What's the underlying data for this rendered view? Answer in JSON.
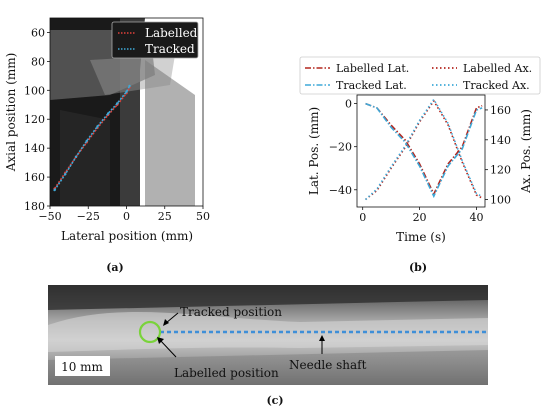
{
  "chart_data": [
    {
      "type": "scatter",
      "panel_label": "(a)",
      "xlabel": "Lateral position (mm)",
      "ylabel": "Axial position (mm)",
      "xlim": [
        -50,
        50
      ],
      "ylim": [
        180,
        50
      ],
      "xticks": [
        "−50",
        "−25",
        "0",
        "25",
        "50"
      ],
      "yticks": [
        "60",
        "80",
        "100",
        "120",
        "140",
        "160",
        "180"
      ],
      "legend": [
        "Labelled",
        "Tracked"
      ],
      "legend_placement": "top-right",
      "background": "ultrasound image",
      "series": [
        {
          "name": "Labelled",
          "color": "#e0413b",
          "x": [
            -47,
            -40,
            -33,
            -26,
            -19,
            -12,
            -6,
            0,
            2
          ],
          "y": [
            168,
            157,
            146,
            136,
            126,
            117,
            110,
            102,
            98
          ]
        },
        {
          "name": "Tracked",
          "color": "#3fa9d8",
          "x": [
            -47,
            -40,
            -33,
            -26,
            -19,
            -12,
            -6,
            0,
            2
          ],
          "y": [
            169,
            158,
            146,
            135,
            125,
            116,
            109,
            101,
            97
          ]
        }
      ]
    },
    {
      "type": "line",
      "panel_label": "(b)",
      "xlabel": "Time (s)",
      "ylabel_left": "Lat. Pos. (mm)",
      "ylabel_right": "Ax. Pos. (mm)",
      "xlim": [
        -2,
        43
      ],
      "ylim_left": [
        -48,
        4
      ],
      "ylim_right": [
        95,
        170
      ],
      "xticks": [
        "0",
        "20",
        "40"
      ],
      "yticks_left": [
        "0",
        "−20",
        "−40"
      ],
      "yticks_right": [
        "100",
        "120",
        "140",
        "160"
      ],
      "legend": [
        "Labelled Lat.",
        "Tracked Lat.",
        "Labelled Ax.",
        "Tracked Ax."
      ],
      "legend_placement": "top, outside",
      "x": [
        1,
        5,
        10,
        15,
        20,
        25,
        30,
        35,
        40,
        42
      ],
      "series": [
        {
          "name": "Labelled Lat.",
          "axis": "left",
          "color": "#b3261e",
          "style": "dashdot",
          "values": [
            0,
            -2,
            -10,
            -17,
            -28,
            -42,
            -28,
            -20,
            -2,
            -1
          ]
        },
        {
          "name": "Tracked Lat.",
          "axis": "left",
          "color": "#3fa9d8",
          "style": "dashdot",
          "values": [
            0,
            -2,
            -11,
            -18,
            -29,
            -43,
            -29,
            -21,
            -3,
            -2
          ]
        },
        {
          "name": "Labelled Ax.",
          "axis": "right",
          "color": "#b3261e",
          "style": "dotted",
          "values": [
            100,
            106,
            121,
            135,
            152,
            166,
            150,
            125,
            103,
            101
          ]
        },
        {
          "name": "Tracked Ax.",
          "axis": "right",
          "color": "#3fa9d8",
          "style": "dotted",
          "values": [
            100,
            107,
            122,
            136,
            153,
            167,
            151,
            126,
            104,
            102
          ]
        }
      ]
    },
    {
      "type": "image",
      "panel_label": "(c)",
      "annotations": [
        "Tracked position",
        "Labelled position",
        "Needle shaft"
      ],
      "scale_bar": "10 mm",
      "colors": {
        "tracked_line": "#3f8fd8",
        "labelled_circle": "#7ad33b"
      }
    }
  ]
}
